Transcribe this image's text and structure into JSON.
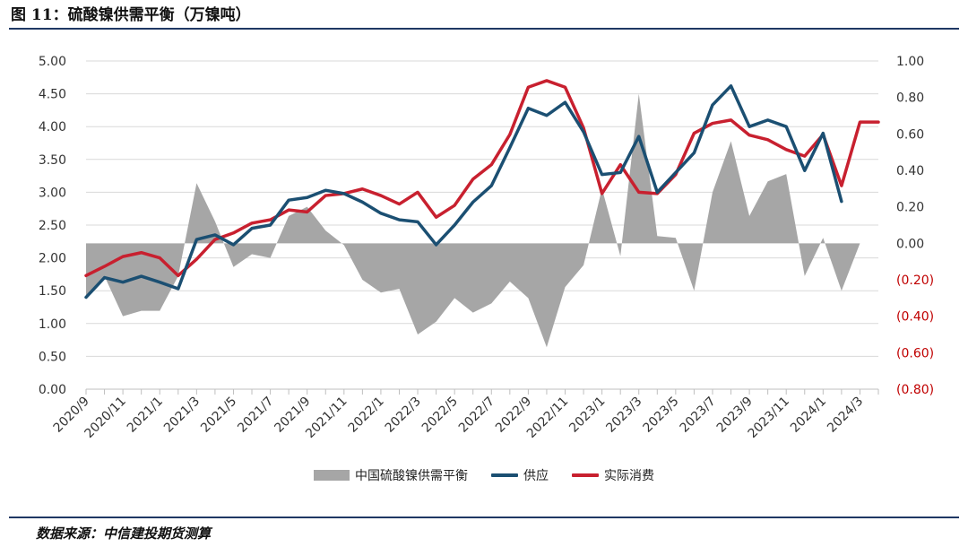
{
  "header": {
    "title": "图 11：硫酸镍供需平衡（万镍吨）"
  },
  "footer": {
    "source": "数据来源：中信建投期货测算"
  },
  "colors": {
    "balance": "#a6a6a6",
    "supply": "#1b4f72",
    "consumption": "#c8202f",
    "rule": "#1f3864",
    "right_axis_text": "#c00000"
  },
  "chart_data": {
    "type": "line",
    "x": [
      "2020/9",
      "2020/10",
      "2020/11",
      "2020/12",
      "2021/1",
      "2021/2",
      "2021/3",
      "2021/4",
      "2021/5",
      "2021/6",
      "2021/7",
      "2021/8",
      "2021/9",
      "2021/10",
      "2021/11",
      "2021/12",
      "2022/1",
      "2022/2",
      "2022/3",
      "2022/4",
      "2022/5",
      "2022/6",
      "2022/7",
      "2022/8",
      "2022/9",
      "2022/10",
      "2022/11",
      "2022/12",
      "2023/1",
      "2023/2",
      "2023/3",
      "2023/4",
      "2023/5",
      "2023/6",
      "2023/7",
      "2023/8",
      "2023/9",
      "2023/10",
      "2023/11",
      "2023/12",
      "2024/1",
      "2024/2",
      "2024/3",
      "2024/4"
    ],
    "x_tick_labels": [
      "2020/9",
      "2020/11",
      "2021/1",
      "2021/3",
      "2021/5",
      "2021/7",
      "2021/9",
      "2021/11",
      "2022/1",
      "2022/3",
      "2022/5",
      "2022/7",
      "2022/9",
      "2022/11",
      "2023/1",
      "2023/3",
      "2023/5",
      "2023/7",
      "2023/9",
      "2023/11",
      "2024/1",
      "2024/3"
    ],
    "left_axis": {
      "ylim": [
        0,
        5
      ],
      "ticks": [
        "5.00",
        "4.50",
        "4.00",
        "3.50",
        "3.00",
        "2.50",
        "2.00",
        "1.50",
        "1.00",
        "0.50",
        "0.00"
      ]
    },
    "right_axis": {
      "ylim": [
        -0.8,
        1.0
      ],
      "ticks": [
        "1.00",
        "0.80",
        "0.60",
        "0.40",
        "0.20",
        "0.00",
        "(0.20)",
        "(0.40)",
        "(0.60)",
        "(0.80)"
      ]
    },
    "series": [
      {
        "name": "中国硫酸镍供需平衡",
        "type": "area",
        "axis": "right",
        "values": [
          -0.3,
          -0.18,
          -0.4,
          -0.37,
          -0.37,
          -0.18,
          0.33,
          0.12,
          -0.13,
          -0.06,
          -0.08,
          0.15,
          0.2,
          0.07,
          -0.01,
          -0.2,
          -0.27,
          -0.25,
          -0.5,
          -0.43,
          -0.3,
          -0.38,
          -0.33,
          -0.21,
          -0.3,
          -0.57,
          -0.24,
          -0.12,
          0.3,
          -0.07,
          0.82,
          0.04,
          0.03,
          -0.26,
          0.28,
          0.56,
          0.15,
          0.34,
          0.38,
          -0.18,
          0.03,
          -0.26,
          0.0,
          null
        ]
      },
      {
        "name": "供应",
        "type": "line",
        "axis": "left",
        "values": [
          1.4,
          1.7,
          1.63,
          1.72,
          1.63,
          1.53,
          2.28,
          2.35,
          2.2,
          2.45,
          2.5,
          2.88,
          2.92,
          3.03,
          2.98,
          2.85,
          2.68,
          2.58,
          2.55,
          2.2,
          2.5,
          2.85,
          3.1,
          3.68,
          4.28,
          4.17,
          4.37,
          3.92,
          3.27,
          3.3,
          3.85,
          3.0,
          3.3,
          3.6,
          4.33,
          4.62,
          4.0,
          4.1,
          4.0,
          3.33,
          3.9,
          2.86,
          null,
          null
        ]
      },
      {
        "name": "实际消费",
        "type": "line",
        "axis": "left",
        "values": [
          1.73,
          1.87,
          2.02,
          2.08,
          2.0,
          1.73,
          1.98,
          2.28,
          2.38,
          2.53,
          2.58,
          2.73,
          2.7,
          2.95,
          2.98,
          3.05,
          2.95,
          2.82,
          3.0,
          2.62,
          2.8,
          3.2,
          3.42,
          3.88,
          4.6,
          4.7,
          4.6,
          3.98,
          2.98,
          3.42,
          3.0,
          2.98,
          3.27,
          3.9,
          4.05,
          4.1,
          3.87,
          3.8,
          3.65,
          3.55,
          3.88,
          3.1,
          4.07,
          4.07
        ]
      }
    ]
  }
}
